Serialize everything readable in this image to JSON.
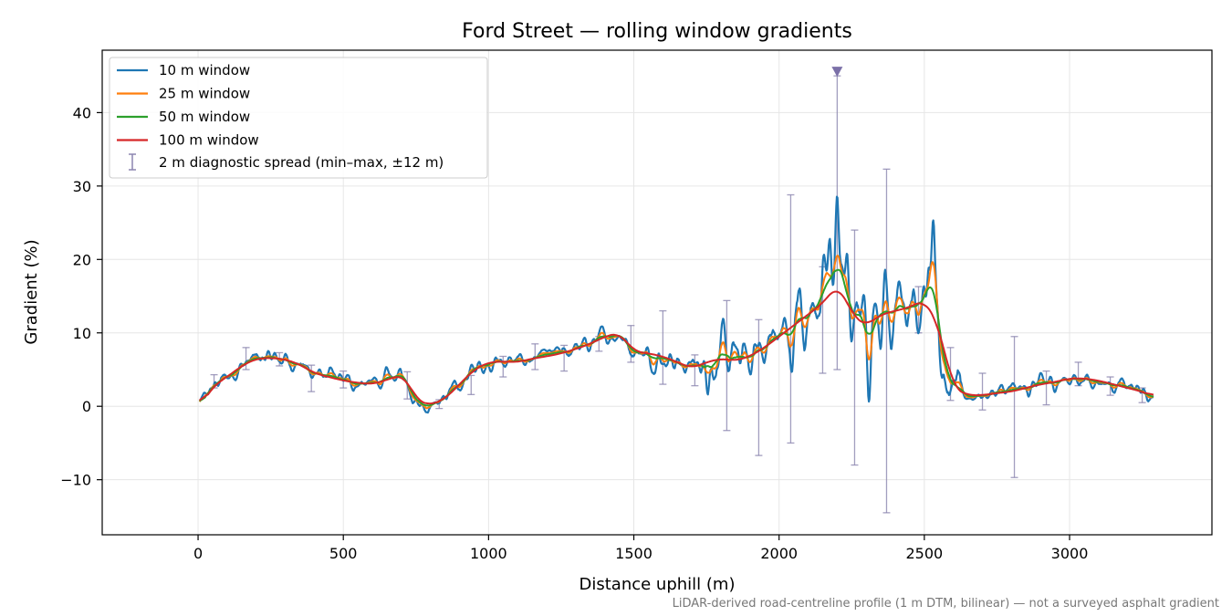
{
  "chart_data": {
    "type": "line",
    "title": "Ford Street — rolling window gradients",
    "xlabel": "Distance uphill (m)",
    "ylabel": "Gradient (%)",
    "footnote": "LiDAR-derived road-centreline profile (1 m DTM, bilinear) — not a surveyed asphalt gradient",
    "xlim": [
      -330,
      3490
    ],
    "ylim": [
      -17.5,
      48.5
    ],
    "x_ticks": [
      0,
      500,
      1000,
      1500,
      2000,
      2500,
      3000
    ],
    "x_tick_labels": [
      "0",
      "500",
      "1000",
      "1500",
      "2000",
      "2500",
      "3000"
    ],
    "y_ticks": [
      -10,
      0,
      10,
      20,
      30,
      40
    ],
    "y_tick_labels": [
      "−10",
      "0",
      "10",
      "20",
      "30",
      "40"
    ],
    "grid": true,
    "legend_position": "top-left",
    "legend": {
      "spread_label": "2 m diagnostic spread (min–max, ±12 m)",
      "spread_color": "#8c86b0"
    },
    "marker": {
      "x": 2200,
      "y": 45.5,
      "shape": "down-triangle",
      "color": "#7b70a8"
    },
    "anchors": {
      "x": [
        5,
        30,
        60,
        100,
        150,
        200,
        250,
        300,
        350,
        400,
        450,
        500,
        550,
        600,
        650,
        700,
        720,
        750,
        780,
        800,
        850,
        900,
        950,
        1000,
        1050,
        1100,
        1150,
        1200,
        1250,
        1300,
        1350,
        1400,
        1450,
        1480,
        1500,
        1550,
        1600,
        1650,
        1700,
        1750,
        1800,
        1850,
        1900,
        1950,
        2000,
        2050,
        2100,
        2150,
        2200,
        2230,
        2260,
        2300,
        2350,
        2400,
        2450,
        2500,
        2520,
        2540,
        2560,
        2600,
        2650,
        2700,
        2750,
        2800,
        2850,
        2900,
        2950,
        3000,
        3050,
        3100,
        3150,
        3200,
        3250,
        3290
      ],
      "y": [
        -0.2,
        1.5,
        3.0,
        4.0,
        5.5,
        6.5,
        6.6,
        6.4,
        5.7,
        4.5,
        4.0,
        3.5,
        3.2,
        3.0,
        3.6,
        4.3,
        3.5,
        1.0,
        0.3,
        0.2,
        1.0,
        3.0,
        5.0,
        6.0,
        6.1,
        6.0,
        6.5,
        6.8,
        7.2,
        7.8,
        8.5,
        9.5,
        10.0,
        8.5,
        7.5,
        7.2,
        6.8,
        6.0,
        5.2,
        6.0,
        6.5,
        6.2,
        6.8,
        8.0,
        9.5,
        11.0,
        12.5,
        14.0,
        16.5,
        14.5,
        12.0,
        11.0,
        12.5,
        13.0,
        13.5,
        14.5,
        13.0,
        12.0,
        9.0,
        2.5,
        1.5,
        1.5,
        1.8,
        2.0,
        2.5,
        3.0,
        3.3,
        3.8,
        3.8,
        3.5,
        3.0,
        2.5,
        2.0,
        1.3
      ]
    },
    "spikes": {
      "x": [
        2045,
        2070,
        2090,
        2110,
        2130,
        2150,
        2175,
        2200,
        2215,
        2235,
        2250,
        2270,
        2290,
        2310,
        2330,
        2350,
        2365,
        2385,
        2410,
        2440,
        2470,
        2500,
        2515,
        2530,
        2545,
        2560,
        2575,
        2590
      ],
      "amp10": [
        -6,
        4,
        -3,
        5,
        -2,
        6,
        8,
        13,
        4,
        8,
        -8,
        5,
        4,
        -7,
        2,
        -4,
        9,
        -5,
        3,
        -3,
        1,
        2,
        9,
        14,
        6,
        -3,
        -6,
        -4
      ],
      "amp25": [
        -3,
        2,
        -1.5,
        2.5,
        -1,
        3,
        3,
        5,
        2,
        4,
        -4,
        3,
        2,
        -5,
        1,
        -2,
        4,
        -2,
        1.5,
        -1.5,
        0.5,
        1,
        4,
        8,
        3,
        -1,
        -2,
        -1.5
      ],
      "amp50": [
        -1.5,
        1,
        -0.7,
        1.2,
        -0.5,
        1.5,
        1.6,
        2.8,
        1.2,
        2,
        -2,
        1.5,
        1,
        -2.5,
        0.6,
        -1,
        2,
        -1,
        0.7,
        -0.7,
        0.3,
        0.6,
        2,
        3.5,
        1.5,
        -0.5,
        -1,
        -0.8
      ]
    },
    "series": [
      {
        "name": "10 m window",
        "color": "#1f77b4",
        "noise": 1.4,
        "smooth": 4
      },
      {
        "name": "25 m window",
        "color": "#ff7f0e",
        "noise": 0.8,
        "smooth": 9
      },
      {
        "name": "50 m window",
        "color": "#2ca02c",
        "noise": 0.45,
        "smooth": 18
      },
      {
        "name": "100 m window",
        "color": "#d62728",
        "noise": 0.0,
        "smooth": 30
      }
    ],
    "spread": [
      {
        "x": 55,
        "min": 2.5,
        "max": 4.3
      },
      {
        "x": 165,
        "min": 5.0,
        "max": 8.0
      },
      {
        "x": 280,
        "min": 5.5,
        "max": 7.3
      },
      {
        "x": 390,
        "min": 2.0,
        "max": 5.6
      },
      {
        "x": 500,
        "min": 2.5,
        "max": 4.8
      },
      {
        "x": 720,
        "min": 1.0,
        "max": 4.7
      },
      {
        "x": 830,
        "min": -0.3,
        "max": 0.9
      },
      {
        "x": 940,
        "min": 1.6,
        "max": 4.2
      },
      {
        "x": 1050,
        "min": 4.0,
        "max": 6.8
      },
      {
        "x": 1160,
        "min": 5.0,
        "max": 8.5
      },
      {
        "x": 1260,
        "min": 4.8,
        "max": 8.3
      },
      {
        "x": 1380,
        "min": 7.5,
        "max": 9.5
      },
      {
        "x": 1490,
        "min": 6.0,
        "max": 11.0
      },
      {
        "x": 1600,
        "min": 3.0,
        "max": 13.0
      },
      {
        "x": 1710,
        "min": 2.8,
        "max": 7.0
      },
      {
        "x": 1820,
        "min": -3.3,
        "max": 14.4
      },
      {
        "x": 1930,
        "min": -6.7,
        "max": 11.8
      },
      {
        "x": 2040,
        "min": -5.0,
        "max": 28.8
      },
      {
        "x": 2150,
        "min": 4.5,
        "max": 19.0
      },
      {
        "x": 2200,
        "min": 5.0,
        "max": 45.0
      },
      {
        "x": 2260,
        "min": -8.0,
        "max": 24.0
      },
      {
        "x": 2370,
        "min": -14.5,
        "max": 32.3
      },
      {
        "x": 2480,
        "min": 10.0,
        "max": 16.3
      },
      {
        "x": 2590,
        "min": 0.8,
        "max": 8.0
      },
      {
        "x": 2700,
        "min": -0.5,
        "max": 4.5
      },
      {
        "x": 2810,
        "min": -9.7,
        "max": 9.5
      },
      {
        "x": 2920,
        "min": 0.2,
        "max": 4.8
      },
      {
        "x": 3030,
        "min": 2.8,
        "max": 6.0
      },
      {
        "x": 3140,
        "min": 1.5,
        "max": 4.0
      },
      {
        "x": 3250,
        "min": 0.5,
        "max": 2.5
      }
    ]
  }
}
